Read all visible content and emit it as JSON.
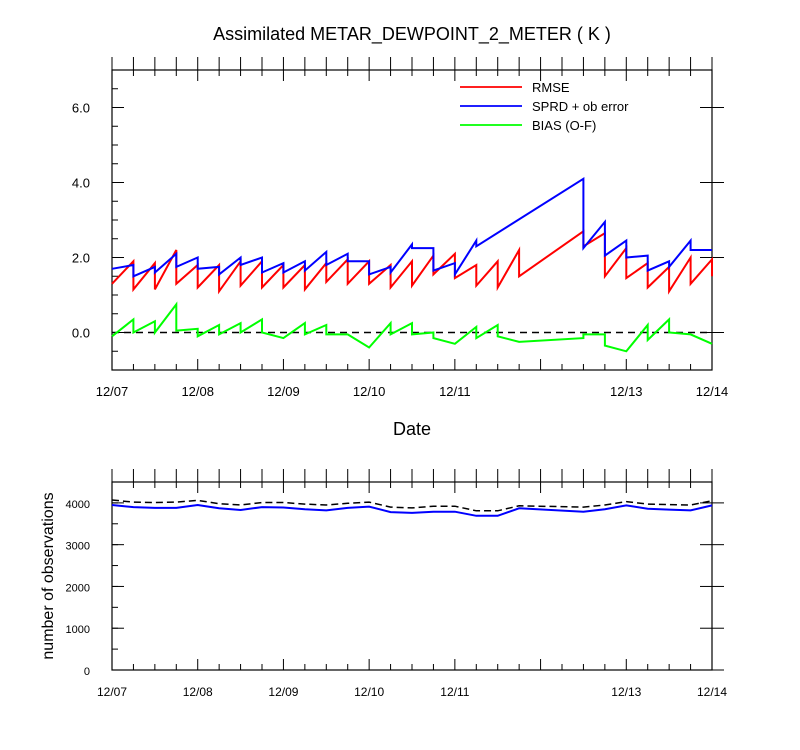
{
  "chart_data": [
    {
      "type": "line",
      "title": "Assimilated METAR_DEWPOINT_2_METER ( K )",
      "xlabel": "Date",
      "ylabel": "",
      "xlim": [
        0,
        7
      ],
      "ylim": [
        -1,
        7
      ],
      "x_ticks": [
        {
          "x": 0,
          "label": "12/07"
        },
        {
          "x": 1,
          "label": "12/08"
        },
        {
          "x": 2,
          "label": "12/09"
        },
        {
          "x": 3,
          "label": "12/10"
        },
        {
          "x": 4,
          "label": "12/11"
        },
        {
          "x": 6,
          "label": "12/13"
        },
        {
          "x": 7,
          "label": "12/14"
        }
      ],
      "y_ticks": [
        {
          "y": 0,
          "label": "0.0"
        },
        {
          "y": 2,
          "label": "2.0"
        },
        {
          "y": 4,
          "label": "4.0"
        },
        {
          "y": 6,
          "label": "6.0"
        }
      ],
      "legend": {
        "position": "top-right"
      },
      "reference_lines": [
        {
          "y": 0,
          "style": "dashed",
          "color": "#000000"
        }
      ],
      "series": [
        {
          "name": "RMSE",
          "color": "#ff0000",
          "points": [
            [
              0,
              1.3
            ],
            [
              0.25,
              1.9
            ],
            [
              0.25,
              1.15
            ],
            [
              0.5,
              1.85
            ],
            [
              0.5,
              1.15
            ],
            [
              0.75,
              2.2
            ],
            [
              0.75,
              1.3
            ],
            [
              1.0,
              1.8
            ],
            [
              1.0,
              1.2
            ],
            [
              1.25,
              1.8
            ],
            [
              1.25,
              1.1
            ],
            [
              1.5,
              1.9
            ],
            [
              1.5,
              1.25
            ],
            [
              1.75,
              1.9
            ],
            [
              1.75,
              1.2
            ],
            [
              2.0,
              1.8
            ],
            [
              2.0,
              1.2
            ],
            [
              2.25,
              1.8
            ],
            [
              2.25,
              1.15
            ],
            [
              2.5,
              1.85
            ],
            [
              2.5,
              1.35
            ],
            [
              2.75,
              1.95
            ],
            [
              2.75,
              1.3
            ],
            [
              3.0,
              1.9
            ],
            [
              3.0,
              1.3
            ],
            [
              3.25,
              1.8
            ],
            [
              3.25,
              1.2
            ],
            [
              3.5,
              1.9
            ],
            [
              3.5,
              1.25
            ],
            [
              3.75,
              2.05
            ],
            [
              3.75,
              1.55
            ],
            [
              4.0,
              2.1
            ],
            [
              4.0,
              1.45
            ],
            [
              4.25,
              1.8
            ],
            [
              4.25,
              1.25
            ],
            [
              4.5,
              1.9
            ],
            [
              4.5,
              1.2
            ],
            [
              4.75,
              2.2
            ],
            [
              4.75,
              1.5
            ],
            [
              5.5,
              2.7
            ],
            [
              5.5,
              2.3
            ],
            [
              5.75,
              2.65
            ],
            [
              5.75,
              1.5
            ],
            [
              6.0,
              2.25
            ],
            [
              6.0,
              1.45
            ],
            [
              6.25,
              1.85
            ],
            [
              6.25,
              1.2
            ],
            [
              6.5,
              1.75
            ],
            [
              6.5,
              1.1
            ],
            [
              6.75,
              2.0
            ],
            [
              6.75,
              1.3
            ],
            [
              7.0,
              1.95
            ],
            [
              7.0,
              1.5
            ]
          ]
        },
        {
          "name": "SPRD + ob error",
          "color": "#0000ff",
          "points": [
            [
              0,
              1.7
            ],
            [
              0.25,
              1.8
            ],
            [
              0.25,
              1.5
            ],
            [
              0.5,
              1.75
            ],
            [
              0.5,
              1.6
            ],
            [
              0.75,
              2.1
            ],
            [
              0.75,
              1.75
            ],
            [
              1.0,
              2.0
            ],
            [
              1.0,
              1.7
            ],
            [
              1.25,
              1.75
            ],
            [
              1.25,
              1.55
            ],
            [
              1.5,
              2.0
            ],
            [
              1.5,
              1.8
            ],
            [
              1.75,
              2.0
            ],
            [
              1.75,
              1.6
            ],
            [
              2.0,
              1.85
            ],
            [
              2.0,
              1.6
            ],
            [
              2.25,
              1.9
            ],
            [
              2.25,
              1.65
            ],
            [
              2.5,
              2.15
            ],
            [
              2.5,
              1.8
            ],
            [
              2.75,
              2.1
            ],
            [
              2.75,
              1.9
            ],
            [
              3.0,
              1.9
            ],
            [
              3.0,
              1.55
            ],
            [
              3.25,
              1.75
            ],
            [
              3.25,
              1.6
            ],
            [
              3.5,
              2.35
            ],
            [
              3.5,
              2.25
            ],
            [
              3.75,
              2.25
            ],
            [
              3.75,
              1.65
            ],
            [
              4.0,
              1.85
            ],
            [
              4.0,
              1.55
            ],
            [
              4.25,
              2.45
            ],
            [
              4.25,
              2.3
            ],
            [
              5.5,
              4.1
            ],
            [
              5.5,
              2.25
            ],
            [
              5.75,
              2.95
            ],
            [
              5.75,
              2.05
            ],
            [
              6.0,
              2.45
            ],
            [
              6.0,
              2.0
            ],
            [
              6.25,
              2.05
            ],
            [
              6.25,
              1.65
            ],
            [
              6.5,
              1.9
            ],
            [
              6.5,
              1.75
            ],
            [
              6.75,
              2.45
            ],
            [
              6.75,
              2.2
            ],
            [
              7.0,
              2.2
            ]
          ]
        },
        {
          "name": "BIAS (O-F)",
          "color": "#00ff00",
          "points": [
            [
              0,
              -0.1
            ],
            [
              0.25,
              0.35
            ],
            [
              0.25,
              0.0
            ],
            [
              0.5,
              0.3
            ],
            [
              0.5,
              0.0
            ],
            [
              0.75,
              0.75
            ],
            [
              0.75,
              0.05
            ],
            [
              1.0,
              0.1
            ],
            [
              1.0,
              -0.1
            ],
            [
              1.25,
              0.2
            ],
            [
              1.25,
              -0.05
            ],
            [
              1.5,
              0.25
            ],
            [
              1.5,
              0.0
            ],
            [
              1.75,
              0.35
            ],
            [
              1.75,
              0.0
            ],
            [
              2.0,
              -0.15
            ],
            [
              2.25,
              0.25
            ],
            [
              2.25,
              -0.05
            ],
            [
              2.5,
              0.2
            ],
            [
              2.5,
              -0.05
            ],
            [
              2.75,
              -0.05
            ],
            [
              3.0,
              -0.4
            ],
            [
              3.25,
              0.25
            ],
            [
              3.25,
              -0.05
            ],
            [
              3.5,
              0.25
            ],
            [
              3.5,
              -0.05
            ],
            [
              3.75,
              0.0
            ],
            [
              3.75,
              -0.15
            ],
            [
              4.0,
              -0.3
            ],
            [
              4.25,
              0.15
            ],
            [
              4.25,
              -0.15
            ],
            [
              4.5,
              0.2
            ],
            [
              4.5,
              -0.1
            ],
            [
              4.75,
              -0.25
            ],
            [
              5.5,
              -0.15
            ],
            [
              5.5,
              -0.05
            ],
            [
              5.75,
              -0.05
            ],
            [
              5.75,
              -0.35
            ],
            [
              6.0,
              -0.5
            ],
            [
              6.25,
              0.2
            ],
            [
              6.25,
              -0.2
            ],
            [
              6.5,
              0.35
            ],
            [
              6.5,
              0.0
            ],
            [
              6.75,
              -0.05
            ],
            [
              7.0,
              -0.3
            ]
          ]
        }
      ]
    },
    {
      "type": "line",
      "title": "",
      "xlabel": "",
      "ylabel": "number of observations",
      "xlim": [
        0,
        7
      ],
      "ylim": [
        0,
        4500
      ],
      "x_ticks": [
        {
          "x": 0,
          "label": "12/07"
        },
        {
          "x": 1,
          "label": "12/08"
        },
        {
          "x": 2,
          "label": "12/09"
        },
        {
          "x": 3,
          "label": "12/10"
        },
        {
          "x": 4,
          "label": "12/11"
        },
        {
          "x": 6,
          "label": "12/13"
        },
        {
          "x": 7,
          "label": "12/14"
        }
      ],
      "y_ticks": [
        {
          "y": 0,
          "label": "0"
        },
        {
          "y": 1000,
          "label": "1000"
        },
        {
          "y": 2000,
          "label": "2000"
        },
        {
          "y": 3000,
          "label": "3000"
        },
        {
          "y": 4000,
          "label": "4000"
        }
      ],
      "series": [
        {
          "color": "#000000",
          "style": "dashed",
          "points": [
            [
              0,
              4070
            ],
            [
              0.25,
              4020
            ],
            [
              0.5,
              4010
            ],
            [
              0.75,
              4020
            ],
            [
              1.0,
              4060
            ],
            [
              1.25,
              3980
            ],
            [
              1.5,
              3950
            ],
            [
              1.75,
              4010
            ],
            [
              2.0,
              4010
            ],
            [
              2.25,
              3970
            ],
            [
              2.5,
              3950
            ],
            [
              2.75,
              3990
            ],
            [
              3.0,
              4020
            ],
            [
              3.25,
              3900
            ],
            [
              3.5,
              3880
            ],
            [
              3.75,
              3920
            ],
            [
              4.0,
              3920
            ],
            [
              4.25,
              3810
            ],
            [
              4.5,
              3810
            ],
            [
              4.75,
              3930
            ],
            [
              5.5,
              3900
            ],
            [
              5.75,
              3950
            ],
            [
              6.0,
              4030
            ],
            [
              6.25,
              3970
            ],
            [
              6.5,
              3960
            ],
            [
              6.75,
              3950
            ],
            [
              7.0,
              4050
            ]
          ]
        },
        {
          "color": "#0000ff",
          "style": "solid",
          "points": [
            [
              0,
              3950
            ],
            [
              0.25,
              3900
            ],
            [
              0.5,
              3880
            ],
            [
              0.75,
              3880
            ],
            [
              1.0,
              3950
            ],
            [
              1.25,
              3870
            ],
            [
              1.5,
              3830
            ],
            [
              1.75,
              3900
            ],
            [
              2.0,
              3890
            ],
            [
              2.25,
              3850
            ],
            [
              2.5,
              3820
            ],
            [
              2.75,
              3880
            ],
            [
              3.0,
              3910
            ],
            [
              3.25,
              3780
            ],
            [
              3.5,
              3760
            ],
            [
              3.75,
              3790
            ],
            [
              4.0,
              3790
            ],
            [
              4.25,
              3690
            ],
            [
              4.5,
              3690
            ],
            [
              4.75,
              3870
            ],
            [
              5.5,
              3790
            ],
            [
              5.75,
              3850
            ],
            [
              6.0,
              3940
            ],
            [
              6.25,
              3860
            ],
            [
              6.5,
              3840
            ],
            [
              6.75,
              3820
            ],
            [
              7.0,
              3940
            ]
          ]
        }
      ]
    }
  ]
}
